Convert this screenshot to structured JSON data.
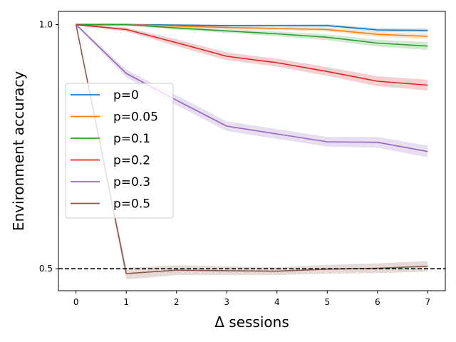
{
  "chart_data": {
    "type": "line",
    "title": "",
    "xlabel": "Δ sessions",
    "ylabel": "Environment accuracy",
    "x": [
      0,
      1,
      2,
      3,
      4,
      5,
      6,
      7
    ],
    "xticks": [
      "0",
      "1",
      "2",
      "3",
      "4",
      "5",
      "6",
      "7"
    ],
    "yticks": [
      {
        "value": 0.5,
        "label": "0.5"
      },
      {
        "value": 1.0,
        "label": "1.0"
      }
    ],
    "xlim": [
      -0.35,
      7.35
    ],
    "ylim": [
      0.455,
      1.027
    ],
    "reference_line": {
      "y": 0.5,
      "style": "dashed",
      "color": "#000000"
    },
    "legend": {
      "position": "center-left"
    },
    "series": [
      {
        "name": "p=0",
        "label": "p=0",
        "color": "#1f77b4",
        "values": [
          1.0,
          1.0,
          0.999,
          0.998,
          0.998,
          0.998,
          0.989,
          0.988
        ],
        "band": [
          0.002,
          0.002,
          0.002,
          0.002,
          0.002,
          0.003,
          0.004,
          0.004
        ]
      },
      {
        "name": "p=0.05",
        "label": "p=0.05",
        "color": "#ff7f0e",
        "values": [
          1.0,
          1.0,
          0.997,
          0.994,
          0.992,
          0.99,
          0.98,
          0.976
        ],
        "band": [
          0.002,
          0.002,
          0.003,
          0.003,
          0.003,
          0.004,
          0.005,
          0.005
        ]
      },
      {
        "name": "p=0.1",
        "label": "p=0.1",
        "color": "#2ca02c",
        "values": [
          1.0,
          1.0,
          0.993,
          0.987,
          0.981,
          0.974,
          0.962,
          0.956
        ],
        "band": [
          0.002,
          0.002,
          0.003,
          0.004,
          0.005,
          0.006,
          0.007,
          0.008
        ]
      },
      {
        "name": "p=0.2",
        "label": "p=0.2",
        "color": "#d62728",
        "values": [
          1.0,
          0.99,
          0.963,
          0.935,
          0.922,
          0.904,
          0.884,
          0.876
        ],
        "band": [
          0.002,
          0.004,
          0.007,
          0.008,
          0.008,
          0.009,
          0.01,
          0.011
        ]
      },
      {
        "name": "p=0.3",
        "label": "p=0.3",
        "color": "#9467bd",
        "values": [
          1.0,
          0.9,
          0.845,
          0.792,
          0.776,
          0.76,
          0.759,
          0.74
        ],
        "band": [
          0.002,
          0.008,
          0.01,
          0.01,
          0.01,
          0.01,
          0.011,
          0.012
        ]
      },
      {
        "name": "p=0.5",
        "label": "p=0.5",
        "color": "#8c564b",
        "values": [
          1.0,
          0.49,
          0.497,
          0.496,
          0.495,
          0.499,
          0.501,
          0.505
        ],
        "band": [
          0.002,
          0.012,
          0.01,
          0.009,
          0.008,
          0.009,
          0.01,
          0.011
        ]
      }
    ]
  }
}
